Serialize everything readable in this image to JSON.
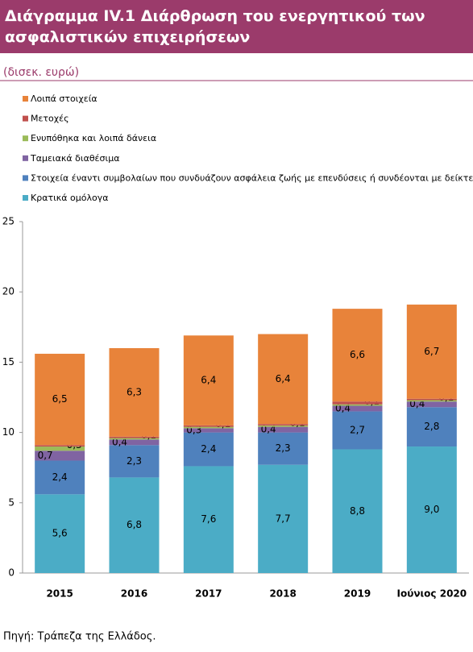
{
  "chart_data": {
    "type": "stacked-bar",
    "title": "Διάγραμμα IV.1 Διάρθρωση του ενεργητικού των ασφαλιστικών επιχειρήσεων",
    "subtitle": "(δισεκ. ευρώ)",
    "source": "Πηγή: Τράπεζα της Ελλάδος.",
    "categories": [
      "2015",
      "2016",
      "2017",
      "2018",
      "2019",
      "Ιούνιος 2020"
    ],
    "series": [
      {
        "name": "Κρατικά ομόλογα",
        "color": "#4bacc6",
        "values": [
          5.6,
          6.8,
          7.6,
          7.7,
          8.8,
          9.0
        ],
        "value_labels": [
          "5,6",
          "6,8",
          "7,6",
          "7,7",
          "8,8",
          "9,0"
        ]
      },
      {
        "name": "Στοιχεία έναντι συμβολαίων που συνδυάζουν ασφάλεια ζωής με επενδύσεις ή συνδέονται με δείκτες",
        "color": "#4f81bd",
        "values": [
          2.4,
          2.3,
          2.4,
          2.3,
          2.7,
          2.8
        ],
        "value_labels": [
          "2,4",
          "2,3",
          "2,4",
          "2,3",
          "2,7",
          "2,8"
        ]
      },
      {
        "name": "Ταμειακά διαθέσιμα",
        "color": "#8064a2",
        "values": [
          0.7,
          0.4,
          0.3,
          0.4,
          0.4,
          0.4
        ],
        "value_labels": [
          "0,7",
          "0,4",
          "0,3",
          "0,4",
          "0,4",
          "0,4"
        ]
      },
      {
        "name": "Ενυπόθηκα και λοιπά δάνεια",
        "color": "#9bbb59",
        "values": [
          0.3,
          0.1,
          0.1,
          0.1,
          0.1,
          0.1
        ],
        "value_labels": [
          "0,3",
          "0,1",
          "0,1",
          "0,1",
          "0,1",
          "0,1"
        ]
      },
      {
        "name": "Μετοχές",
        "color": "#c0504d",
        "values": [
          0.1,
          0.1,
          0.1,
          0.1,
          0.2,
          0.1
        ],
        "value_labels": [
          "0,1",
          "0,1",
          "0,1",
          "0,1",
          "0,2",
          "0,1"
        ]
      },
      {
        "name": "Λοιπά στοιχεία",
        "color": "#e8833a",
        "values": [
          6.5,
          6.3,
          6.4,
          6.4,
          6.6,
          6.7
        ],
        "value_labels": [
          "6,5",
          "6,3",
          "6,4",
          "6,4",
          "6,6",
          "6,7"
        ]
      }
    ],
    "ylim": [
      0,
      25
    ],
    "yticks": [
      0,
      5,
      10,
      15,
      20,
      25
    ],
    "grid": false
  }
}
